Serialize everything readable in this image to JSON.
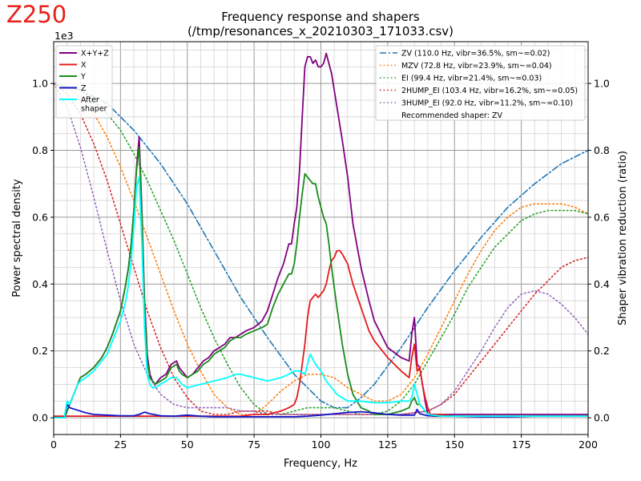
{
  "watermark": "Z250",
  "colors": {
    "watermark": "#e8201a",
    "xyz": "#800080",
    "x": "#e41a1c",
    "y": "#1a8c1a",
    "z": "#1414c8",
    "after": "#00ffff",
    "zv": "#1f77b4",
    "mzv": "#ff7f0e",
    "ei": "#2ca02c",
    "hump2": "#d62728",
    "hump3": "#9467bd",
    "grid_major": "#9a9a9a",
    "grid_minor": "#d4d4d4"
  },
  "chart_data": {
    "type": "line",
    "title": "Frequency response and shapers",
    "subtitle": "(/tmp/resonances_x_20210303_171033.csv)",
    "xlabel": "Frequency, Hz",
    "ylabel": "Power spectral density",
    "y_scale_label": "1e3",
    "ylabel_right": "Shaper vibration reduction (ratio)",
    "xlim": [
      0,
      200
    ],
    "ylim": [
      -0.05,
      1.125
    ],
    "ylim_right": [
      -0.05,
      1.125
    ],
    "xticks": [
      "0",
      "25",
      "50",
      "75",
      "100",
      "125",
      "150",
      "175",
      "200"
    ],
    "yticks": [
      "0.0",
      "0.2",
      "0.4",
      "0.6",
      "0.8",
      "1.0"
    ],
    "yticks_right": [
      "0.0",
      "0.2",
      "0.4",
      "0.6",
      "0.8",
      "1.0"
    ],
    "grid": true,
    "legend_left_position": "top-left",
    "legend_right_position": "top-right",
    "psd_series": [
      {
        "name": "X+Y+Z",
        "color_key": "xyz",
        "x": [
          0,
          4,
          5,
          6,
          7,
          8,
          9,
          10,
          12,
          15,
          18,
          20,
          22,
          25,
          27,
          28,
          29,
          30,
          31,
          32,
          33,
          34,
          35,
          36,
          37,
          38,
          40,
          42,
          44,
          46,
          47,
          48,
          50,
          52,
          54,
          56,
          58,
          60,
          62,
          64,
          66,
          68,
          70,
          72,
          75,
          78,
          80,
          82,
          84,
          86,
          88,
          89,
          90,
          91,
          92,
          93,
          94,
          95,
          96,
          97,
          98,
          99,
          100,
          101,
          102,
          103,
          104,
          106,
          108,
          110,
          112,
          115,
          118,
          120,
          125,
          130,
          133,
          134,
          135,
          136,
          137,
          138,
          139,
          140,
          141,
          142,
          145,
          150,
          160,
          170,
          180,
          190,
          200
        ],
        "y": [
          0,
          0,
          0.02,
          0.04,
          0.06,
          0.08,
          0.1,
          0.12,
          0.13,
          0.15,
          0.18,
          0.21,
          0.25,
          0.32,
          0.4,
          0.45,
          0.52,
          0.62,
          0.75,
          0.84,
          0.62,
          0.35,
          0.19,
          0.13,
          0.11,
          0.1,
          0.12,
          0.13,
          0.16,
          0.17,
          0.15,
          0.14,
          0.12,
          0.13,
          0.15,
          0.17,
          0.18,
          0.2,
          0.21,
          0.22,
          0.24,
          0.24,
          0.25,
          0.26,
          0.27,
          0.29,
          0.32,
          0.37,
          0.42,
          0.46,
          0.52,
          0.52,
          0.58,
          0.63,
          0.74,
          0.9,
          1.05,
          1.08,
          1.08,
          1.06,
          1.07,
          1.05,
          1.05,
          1.06,
          1.09,
          1.06,
          1.03,
          0.93,
          0.83,
          0.72,
          0.58,
          0.45,
          0.35,
          0.29,
          0.21,
          0.18,
          0.17,
          0.25,
          0.3,
          0.16,
          0.15,
          0.1,
          0.05,
          0.01,
          0.01,
          0.01,
          0.01,
          0.01,
          0.01,
          0.01,
          0.01,
          0.01,
          0.01
        ]
      },
      {
        "name": "X",
        "color_key": "x",
        "x": [
          0,
          10,
          20,
          30,
          40,
          50,
          60,
          70,
          75,
          80,
          85,
          88,
          90,
          91,
          92,
          93,
          94,
          95,
          96,
          97,
          98,
          99,
          100,
          101,
          102,
          103,
          104,
          105,
          106,
          107,
          108,
          110,
          112,
          115,
          118,
          120,
          125,
          130,
          133,
          134,
          135,
          136,
          137,
          138,
          139,
          140,
          141,
          142,
          145,
          150,
          170,
          200
        ],
        "y": [
          0.005,
          0.005,
          0.005,
          0.005,
          0.005,
          0.005,
          0.005,
          0.005,
          0.01,
          0.01,
          0.02,
          0.03,
          0.04,
          0.06,
          0.1,
          0.16,
          0.22,
          0.3,
          0.35,
          0.36,
          0.37,
          0.36,
          0.37,
          0.38,
          0.4,
          0.44,
          0.47,
          0.48,
          0.5,
          0.5,
          0.49,
          0.46,
          0.4,
          0.33,
          0.26,
          0.23,
          0.18,
          0.14,
          0.12,
          0.18,
          0.22,
          0.14,
          0.15,
          0.1,
          0.06,
          0.03,
          0.01,
          0.01,
          0.01,
          0.005,
          0.005,
          0.005
        ]
      },
      {
        "name": "Y",
        "color_key": "y",
        "x": [
          0,
          4,
          5,
          6,
          7,
          8,
          9,
          10,
          12,
          15,
          18,
          20,
          22,
          25,
          27,
          28,
          29,
          30,
          31,
          32,
          33,
          34,
          35,
          36,
          37,
          38,
          40,
          42,
          44,
          46,
          47,
          48,
          50,
          52,
          54,
          56,
          58,
          60,
          62,
          64,
          66,
          68,
          70,
          72,
          75,
          78,
          80,
          82,
          84,
          86,
          88,
          89,
          90,
          91,
          92,
          93,
          94,
          95,
          96,
          97,
          98,
          99,
          100,
          101,
          102,
          103,
          104,
          106,
          108,
          110,
          112,
          115,
          118,
          120,
          125,
          130,
          133,
          134,
          135,
          136,
          137,
          138,
          140,
          142,
          150,
          200
        ],
        "y": [
          0,
          0,
          0.02,
          0.04,
          0.06,
          0.08,
          0.1,
          0.12,
          0.13,
          0.15,
          0.18,
          0.21,
          0.25,
          0.32,
          0.4,
          0.45,
          0.52,
          0.62,
          0.74,
          0.81,
          0.6,
          0.33,
          0.17,
          0.12,
          0.11,
          0.1,
          0.11,
          0.12,
          0.15,
          0.16,
          0.14,
          0.13,
          0.12,
          0.13,
          0.14,
          0.16,
          0.17,
          0.19,
          0.2,
          0.21,
          0.23,
          0.24,
          0.24,
          0.25,
          0.26,
          0.27,
          0.28,
          0.33,
          0.37,
          0.4,
          0.43,
          0.43,
          0.46,
          0.52,
          0.6,
          0.67,
          0.73,
          0.72,
          0.71,
          0.7,
          0.7,
          0.66,
          0.63,
          0.6,
          0.58,
          0.52,
          0.45,
          0.33,
          0.22,
          0.13,
          0.07,
          0.03,
          0.02,
          0.01,
          0.01,
          0.02,
          0.03,
          0.05,
          0.06,
          0.04,
          0.04,
          0.03,
          0.01,
          0.005,
          0.005,
          0.005
        ]
      },
      {
        "name": "Z",
        "color_key": "z",
        "x": [
          0,
          4,
          5,
          6,
          8,
          10,
          12,
          15,
          20,
          25,
          30,
          32,
          34,
          36,
          40,
          45,
          50,
          55,
          60,
          70,
          80,
          90,
          95,
          100,
          105,
          110,
          115,
          120,
          125,
          130,
          135,
          136,
          137,
          140,
          145,
          150,
          160,
          170,
          180,
          190,
          200
        ],
        "y": [
          0,
          0,
          0.04,
          0.03,
          0.025,
          0.02,
          0.015,
          0.01,
          0.008,
          0.006,
          0.006,
          0.01,
          0.017,
          0.012,
          0.006,
          0.005,
          0.008,
          0.005,
          0.003,
          0.003,
          0.003,
          0.003,
          0.005,
          0.008,
          0.012,
          0.016,
          0.018,
          0.015,
          0.01,
          0.008,
          0.008,
          0.025,
          0.012,
          0.006,
          0.005,
          0.005,
          0.003,
          0.003,
          0.005,
          0.005,
          0.005
        ]
      },
      {
        "name": "After\nshaper",
        "color_key": "after",
        "x": [
          0,
          4,
          5,
          6,
          7,
          8,
          9,
          10,
          12,
          15,
          18,
          20,
          22,
          25,
          27,
          28,
          29,
          30,
          31,
          32,
          33,
          34,
          35,
          36,
          37,
          38,
          40,
          42,
          44,
          46,
          48,
          50,
          55,
          60,
          65,
          68,
          70,
          75,
          80,
          85,
          88,
          90,
          92,
          94,
          95,
          96,
          98,
          100,
          102,
          104,
          106,
          110,
          115,
          120,
          125,
          130,
          133,
          134,
          135,
          136,
          137,
          138,
          140,
          145,
          150,
          160,
          170,
          180,
          190,
          200
        ],
        "y": [
          0,
          0,
          0.05,
          0.04,
          0.06,
          0.08,
          0.1,
          0.11,
          0.12,
          0.14,
          0.17,
          0.19,
          0.23,
          0.29,
          0.35,
          0.4,
          0.47,
          0.57,
          0.69,
          0.72,
          0.52,
          0.27,
          0.13,
          0.1,
          0.09,
          0.09,
          0.1,
          0.11,
          0.12,
          0.12,
          0.1,
          0.09,
          0.1,
          0.11,
          0.12,
          0.13,
          0.13,
          0.12,
          0.11,
          0.12,
          0.13,
          0.14,
          0.14,
          0.13,
          0.16,
          0.19,
          0.16,
          0.14,
          0.11,
          0.09,
          0.07,
          0.05,
          0.05,
          0.045,
          0.045,
          0.05,
          0.05,
          0.06,
          0.1,
          0.07,
          0.04,
          0.03,
          0.01,
          0.005,
          0.005,
          0.005,
          0.005,
          0.005,
          0.005,
          0.005
        ]
      }
    ],
    "shaper_series": [
      {
        "name": "ZV (110.0 Hz, vibr=36.5%, sm~=0.02)",
        "color_key": "zv",
        "dash": "dashdot",
        "x": [
          0,
          10,
          20,
          30,
          40,
          50,
          60,
          70,
          80,
          90,
          100,
          105,
          110,
          115,
          120,
          130,
          140,
          150,
          160,
          170,
          180,
          190,
          200
        ],
        "y": [
          1.0,
          0.98,
          0.94,
          0.86,
          0.76,
          0.64,
          0.5,
          0.36,
          0.24,
          0.13,
          0.05,
          0.03,
          0.03,
          0.06,
          0.1,
          0.21,
          0.33,
          0.44,
          0.54,
          0.63,
          0.7,
          0.76,
          0.8
        ]
      },
      {
        "name": "MZV (72.8 Hz, vibr=23.9%, sm~=0.04)",
        "color_key": "mzv",
        "dash": "dot",
        "x": [
          0,
          5,
          10,
          15,
          20,
          25,
          30,
          35,
          40,
          45,
          50,
          55,
          60,
          65,
          70,
          75,
          80,
          85,
          90,
          95,
          100,
          105,
          110,
          115,
          120,
          125,
          130,
          135,
          140,
          145,
          150,
          155,
          160,
          165,
          170,
          175,
          180,
          185,
          190,
          195,
          200
        ],
        "y": [
          1.0,
          0.99,
          0.96,
          0.91,
          0.84,
          0.75,
          0.65,
          0.54,
          0.43,
          0.32,
          0.22,
          0.14,
          0.07,
          0.03,
          0.01,
          0.01,
          0.04,
          0.08,
          0.11,
          0.13,
          0.13,
          0.12,
          0.09,
          0.07,
          0.05,
          0.05,
          0.07,
          0.12,
          0.19,
          0.27,
          0.35,
          0.43,
          0.5,
          0.56,
          0.6,
          0.63,
          0.64,
          0.64,
          0.64,
          0.63,
          0.61
        ]
      },
      {
        "name": "EI (99.4 Hz, vibr=21.4%, sm~=0.03)",
        "color_key": "ei",
        "dash": "dot",
        "x": [
          0,
          5,
          10,
          15,
          20,
          25,
          30,
          35,
          40,
          45,
          50,
          55,
          60,
          65,
          70,
          75,
          80,
          85,
          90,
          95,
          100,
          105,
          110,
          115,
          120,
          125,
          130,
          135,
          140,
          145,
          150,
          155,
          160,
          165,
          170,
          175,
          180,
          185,
          190,
          195,
          200
        ],
        "y": [
          1.0,
          0.99,
          0.98,
          0.95,
          0.91,
          0.86,
          0.79,
          0.71,
          0.62,
          0.53,
          0.43,
          0.33,
          0.24,
          0.16,
          0.09,
          0.04,
          0.01,
          0.01,
          0.02,
          0.03,
          0.03,
          0.03,
          0.02,
          0.01,
          0.01,
          0.02,
          0.05,
          0.1,
          0.17,
          0.24,
          0.31,
          0.39,
          0.45,
          0.51,
          0.55,
          0.59,
          0.61,
          0.62,
          0.62,
          0.62,
          0.61
        ]
      },
      {
        "name": "2HUMP_EI (103.4 Hz, vibr=16.2%, sm~=0.05)",
        "color_key": "hump2",
        "dash": "dot",
        "x": [
          0,
          5,
          10,
          15,
          20,
          25,
          30,
          35,
          40,
          45,
          50,
          55,
          60,
          65,
          70,
          75,
          80,
          85,
          90,
          95,
          100,
          105,
          110,
          120,
          130,
          140,
          145,
          150,
          155,
          160,
          165,
          170,
          175,
          180,
          185,
          190,
          195,
          200
        ],
        "y": [
          1.0,
          0.97,
          0.91,
          0.82,
          0.71,
          0.58,
          0.45,
          0.32,
          0.21,
          0.12,
          0.06,
          0.02,
          0.01,
          0.01,
          0.02,
          0.02,
          0.02,
          0.01,
          0.01,
          0.01,
          0.01,
          0.01,
          0.01,
          0.01,
          0.01,
          0.02,
          0.04,
          0.07,
          0.12,
          0.17,
          0.22,
          0.27,
          0.32,
          0.37,
          0.41,
          0.45,
          0.47,
          0.48
        ]
      },
      {
        "name": "3HUMP_EI (92.0 Hz, vibr=11.2%, sm~=0.10)",
        "color_key": "hump3",
        "dash": "dot",
        "x": [
          0,
          5,
          10,
          15,
          20,
          25,
          30,
          35,
          40,
          45,
          50,
          55,
          60,
          65,
          70,
          75,
          80,
          85,
          90,
          95,
          100,
          110,
          120,
          130,
          140,
          145,
          150,
          155,
          160,
          165,
          170,
          175,
          180,
          185,
          190,
          195,
          200
        ],
        "y": [
          1.0,
          0.93,
          0.81,
          0.66,
          0.5,
          0.35,
          0.22,
          0.13,
          0.07,
          0.04,
          0.03,
          0.03,
          0.03,
          0.03,
          0.02,
          0.02,
          0.01,
          0.01,
          0.01,
          0.01,
          0.01,
          0.01,
          0.01,
          0.01,
          0.02,
          0.04,
          0.08,
          0.14,
          0.2,
          0.27,
          0.33,
          0.37,
          0.38,
          0.37,
          0.34,
          0.3,
          0.25
        ]
      }
    ],
    "legend_right_note": "Recommended shaper: ZV"
  }
}
